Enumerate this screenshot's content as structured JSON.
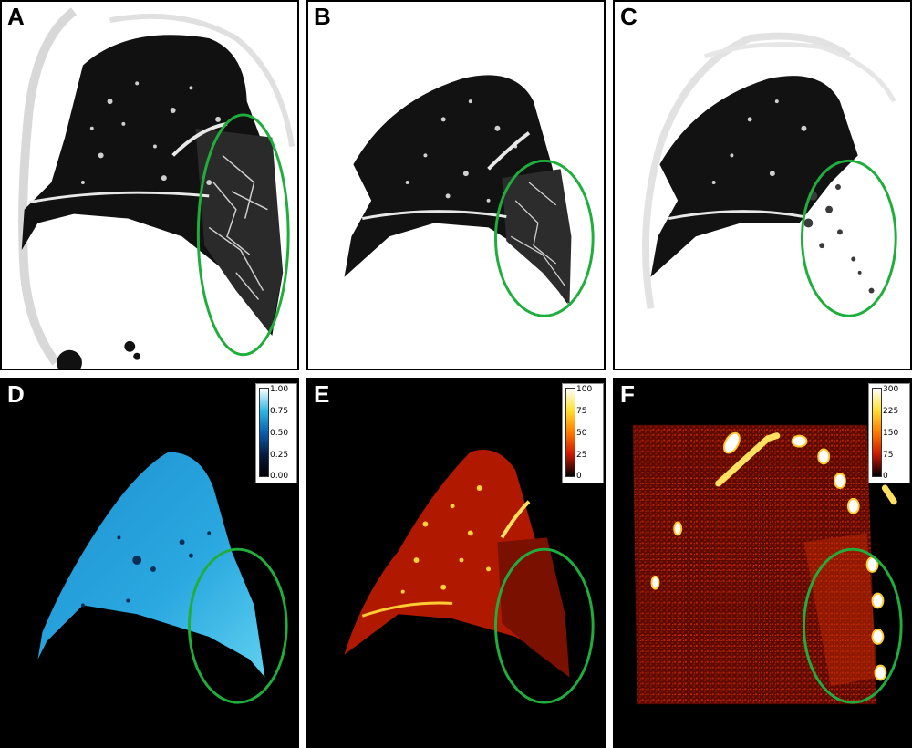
{
  "panels": {
    "A": {
      "label": "A"
    },
    "B": {
      "label": "B"
    },
    "C": {
      "label": "C"
    },
    "D": {
      "label": "D",
      "colorbar": {
        "ticks": [
          "1.00",
          "0.75",
          "0.50",
          "0.25",
          "0.00"
        ],
        "colors": [
          "#ffffff",
          "#2fb8e6",
          "#0a5fb0",
          "#081a40",
          "#000000"
        ]
      }
    },
    "E": {
      "label": "E",
      "colorbar": {
        "ticks": [
          "100",
          "75",
          "50",
          "25",
          "0"
        ],
        "colors": [
          "#ffffff",
          "#ffe030",
          "#ff7a00",
          "#cc1800",
          "#000000"
        ]
      }
    },
    "F": {
      "label": "F",
      "colorbar": {
        "ticks": [
          "300",
          "225",
          "150",
          "75",
          "0"
        ],
        "colors": [
          "#ffffff",
          "#ffe030",
          "#ff7a00",
          "#cc1800",
          "#000000"
        ]
      }
    }
  },
  "highlight_color": "#1fae3c"
}
